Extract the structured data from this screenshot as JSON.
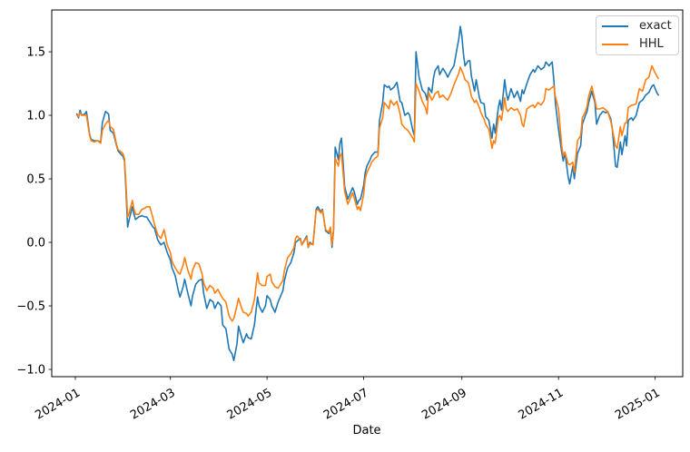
{
  "chart_data": {
    "type": "line",
    "title": "",
    "xlabel": "Date",
    "x_unit": "days_since_2024-01-01",
    "x_tick_days": [
      0,
      60,
      121,
      182,
      244,
      305,
      366
    ],
    "x_tick_labels": [
      "2024-01",
      "2024-03",
      "2024-05",
      "2024-07",
      "2024-09",
      "2024-11",
      "2025-01"
    ],
    "y_ticks": [
      -1.0,
      -0.5,
      0.0,
      0.5,
      1.0,
      1.5
    ],
    "y_tick_labels": [
      "−1.0",
      "−0.5",
      "0.0",
      "0.5",
      "1.0",
      "1.5"
    ],
    "xlim_days": [
      -14.9,
      383.4
    ],
    "ylim": [
      -1.057,
      1.829
    ],
    "grid": false,
    "legend_position": "upper right",
    "x_days": [
      1,
      2,
      3,
      4,
      6,
      7,
      9,
      10,
      12,
      14,
      16,
      17,
      19,
      21,
      22,
      24,
      26,
      27,
      29,
      30,
      31,
      32,
      33,
      34,
      36,
      37,
      38,
      40,
      42,
      44,
      45,
      47,
      49,
      50,
      52,
      54,
      56,
      58,
      60,
      61,
      63,
      65,
      66,
      68,
      69,
      71,
      73,
      74,
      76,
      78,
      80,
      81,
      83,
      85,
      87,
      88,
      90,
      92,
      93,
      95,
      97,
      99,
      100,
      102,
      103,
      105,
      106,
      108,
      109,
      111,
      113,
      115,
      116,
      118,
      120,
      121,
      123,
      124,
      126,
      128,
      131,
      132,
      134,
      136,
      138,
      139,
      140,
      142,
      143,
      146,
      147,
      148,
      150,
      152,
      153,
      155,
      156,
      158,
      160,
      161,
      162,
      163,
      164,
      166,
      167,
      168,
      170,
      172,
      174,
      175,
      176,
      178,
      179,
      180,
      182,
      183,
      184,
      186,
      187,
      189,
      191,
      192,
      194,
      195,
      197,
      198,
      199,
      201,
      203,
      205,
      206,
      208,
      210,
      211,
      213,
      214,
      215,
      217,
      219,
      221,
      222,
      223,
      225,
      226,
      227,
      229,
      230,
      232,
      234,
      235,
      237,
      239,
      241,
      242,
      243,
      244,
      245,
      246,
      248,
      249,
      250,
      252,
      253,
      255,
      256,
      258,
      259,
      261,
      262,
      263,
      264,
      265,
      267,
      268,
      269,
      271,
      272,
      273,
      275,
      277,
      279,
      281,
      282,
      283,
      285,
      287,
      289,
      290,
      292,
      294,
      296,
      297,
      299,
      301,
      302,
      303,
      305,
      307,
      308,
      309,
      311,
      312,
      314,
      315,
      317,
      319,
      320,
      322,
      323,
      324,
      326,
      328,
      329,
      331,
      333,
      335,
      336,
      338,
      339,
      341,
      342,
      344,
      345,
      347,
      348,
      349,
      351,
      352,
      354,
      355,
      356,
      358,
      360,
      362,
      364,
      365,
      367,
      368
    ],
    "series": [
      {
        "name": "exact",
        "color": "#1f77b4",
        "values": [
          1.01,
          0.98,
          1.04,
          1.0,
          1.01,
          1.03,
          0.85,
          0.81,
          0.8,
          0.8,
          0.79,
          0.94,
          1.03,
          1.01,
          0.88,
          0.86,
          0.76,
          0.72,
          0.69,
          0.68,
          0.64,
          0.4,
          0.12,
          0.18,
          0.28,
          0.22,
          0.18,
          0.2,
          0.21,
          0.2,
          0.2,
          0.16,
          0.12,
          0.11,
          0.02,
          -0.02,
          0.0,
          -0.08,
          -0.14,
          -0.2,
          -0.26,
          -0.38,
          -0.43,
          -0.35,
          -0.29,
          -0.4,
          -0.5,
          -0.42,
          -0.33,
          -0.3,
          -0.29,
          -0.4,
          -0.52,
          -0.45,
          -0.47,
          -0.52,
          -0.47,
          -0.5,
          -0.65,
          -0.68,
          -0.84,
          -0.88,
          -0.93,
          -0.8,
          -0.66,
          -0.75,
          -0.79,
          -0.72,
          -0.75,
          -0.76,
          -0.65,
          -0.43,
          -0.5,
          -0.55,
          -0.5,
          -0.42,
          -0.45,
          -0.5,
          -0.55,
          -0.47,
          -0.38,
          -0.3,
          -0.2,
          -0.16,
          -0.08,
          0.0,
          0.01,
          0.03,
          -0.02,
          0.05,
          -0.04,
          0.0,
          -0.02,
          0.26,
          0.28,
          0.24,
          0.26,
          0.09,
          0.07,
          0.11,
          -0.04,
          0.1,
          0.75,
          0.65,
          0.78,
          0.82,
          0.44,
          0.34,
          0.4,
          0.43,
          0.4,
          0.3,
          0.33,
          0.34,
          0.45,
          0.55,
          0.6,
          0.65,
          0.68,
          0.71,
          0.71,
          0.96,
          1.1,
          1.24,
          1.22,
          1.23,
          1.2,
          1.22,
          1.26,
          1.11,
          1.1,
          1.0,
          1.02,
          1.0,
          0.88,
          0.84,
          1.5,
          1.3,
          1.2,
          1.17,
          1.12,
          1.22,
          1.18,
          1.29,
          1.35,
          1.39,
          1.32,
          1.37,
          1.33,
          1.3,
          1.35,
          1.39,
          1.53,
          1.6,
          1.7,
          1.62,
          1.48,
          1.39,
          1.43,
          1.43,
          1.31,
          1.19,
          1.28,
          1.14,
          1.1,
          1.09,
          0.99,
          0.96,
          0.89,
          0.82,
          0.93,
          0.86,
          1.06,
          1.12,
          1.04,
          1.28,
          1.18,
          1.12,
          1.21,
          1.14,
          1.19,
          1.11,
          1.2,
          1.17,
          1.25,
          1.32,
          1.36,
          1.34,
          1.39,
          1.36,
          1.38,
          1.42,
          1.39,
          1.42,
          1.28,
          1.1,
          0.89,
          0.71,
          0.64,
          0.71,
          0.52,
          0.46,
          0.6,
          0.5,
          0.7,
          0.76,
          0.93,
          1.0,
          1.03,
          1.1,
          1.19,
          1.1,
          0.93,
          1.0,
          1.03,
          1.02,
          1.03,
          0.97,
          0.89,
          0.6,
          0.59,
          0.79,
          0.69,
          0.84,
          0.76,
          0.96,
          0.98,
          0.96,
          1.0,
          1.05,
          1.1,
          1.12,
          1.16,
          1.18,
          1.23,
          1.24,
          1.18,
          1.16
        ]
      },
      {
        "name": "HHL",
        "color": "#ff7f0e",
        "values": [
          1.0,
          0.99,
          1.02,
          1.0,
          1.0,
          1.0,
          0.84,
          0.8,
          0.79,
          0.8,
          0.78,
          0.88,
          0.93,
          0.96,
          0.91,
          0.89,
          0.77,
          0.73,
          0.71,
          0.7,
          0.66,
          0.45,
          0.2,
          0.23,
          0.33,
          0.26,
          0.22,
          0.22,
          0.26,
          0.27,
          0.28,
          0.28,
          0.19,
          0.14,
          0.06,
          0.03,
          0.1,
          -0.02,
          -0.08,
          -0.15,
          -0.2,
          -0.24,
          -0.25,
          -0.18,
          -0.12,
          -0.22,
          -0.29,
          -0.22,
          -0.16,
          -0.17,
          -0.25,
          -0.32,
          -0.38,
          -0.34,
          -0.36,
          -0.4,
          -0.37,
          -0.42,
          -0.44,
          -0.47,
          -0.58,
          -0.62,
          -0.6,
          -0.5,
          -0.44,
          -0.52,
          -0.55,
          -0.56,
          -0.58,
          -0.55,
          -0.45,
          -0.24,
          -0.32,
          -0.34,
          -0.34,
          -0.27,
          -0.25,
          -0.31,
          -0.35,
          -0.36,
          -0.3,
          -0.22,
          -0.12,
          -0.09,
          -0.04,
          0.03,
          0.05,
          0.02,
          -0.02,
          0.04,
          -0.04,
          -0.01,
          -0.02,
          0.25,
          0.26,
          0.23,
          0.25,
          0.1,
          0.08,
          0.12,
          -0.02,
          0.1,
          0.66,
          0.6,
          0.68,
          0.7,
          0.4,
          0.3,
          0.36,
          0.39,
          0.35,
          0.26,
          0.28,
          0.25,
          0.38,
          0.5,
          0.55,
          0.6,
          0.63,
          0.66,
          0.68,
          0.9,
          0.98,
          1.1,
          1.07,
          1.05,
          1.12,
          1.08,
          1.11,
          1.01,
          0.93,
          0.9,
          0.88,
          0.86,
          0.82,
          0.79,
          1.25,
          1.19,
          1.11,
          1.06,
          1.01,
          1.18,
          1.12,
          1.14,
          1.17,
          1.19,
          1.14,
          1.16,
          1.13,
          1.12,
          1.17,
          1.24,
          1.3,
          1.33,
          1.38,
          1.35,
          1.32,
          1.28,
          1.26,
          1.21,
          1.15,
          1.1,
          1.12,
          1.06,
          1.02,
          0.97,
          0.93,
          0.89,
          0.82,
          0.74,
          0.8,
          0.78,
          0.98,
          1.0,
          0.96,
          1.14,
          1.05,
          1.03,
          1.06,
          1.04,
          1.05,
          1.0,
          0.93,
          0.91,
          1.05,
          1.07,
          1.08,
          1.06,
          1.1,
          1.08,
          1.12,
          1.21,
          1.2,
          1.22,
          1.23,
          1.15,
          1.05,
          0.76,
          0.68,
          0.71,
          0.62,
          0.61,
          0.63,
          0.55,
          0.8,
          0.84,
          0.98,
          1.03,
          1.07,
          1.15,
          1.23,
          1.12,
          1.05,
          1.05,
          1.06,
          1.04,
          1.03,
          0.95,
          0.89,
          0.76,
          0.74,
          0.91,
          0.84,
          0.94,
          0.94,
          1.06,
          1.08,
          1.08,
          1.09,
          1.15,
          1.21,
          1.19,
          1.28,
          1.3,
          1.39,
          1.36,
          1.31,
          1.29
        ]
      }
    ]
  },
  "legend": {
    "exact": "exact",
    "hhl": "HHL"
  },
  "colors": {
    "exact": "#1f77b4",
    "hhl": "#ff7f0e",
    "spine": "#000000",
    "legend_border": "#cccccc"
  }
}
